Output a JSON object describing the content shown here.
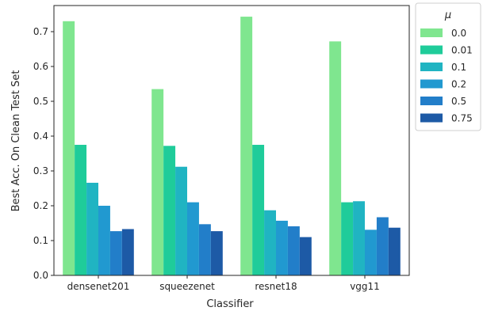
{
  "chart_data": {
    "type": "bar",
    "xlabel": "Classifier",
    "ylabel": "Best Acc. On Clean Test Set",
    "ylim": [
      0,
      0.775
    ],
    "yticks": [
      "0.0",
      "0.1",
      "0.2",
      "0.3",
      "0.4",
      "0.5",
      "0.6",
      "0.7"
    ],
    "categories": [
      "densenet201",
      "squeezenet",
      "resnet18",
      "vgg11"
    ],
    "legend": {
      "title": "μ",
      "placement": "outside-right"
    },
    "series": [
      {
        "name": "0.0",
        "color": "#7fe68f",
        "values": [
          0.73,
          0.535,
          0.743,
          0.672
        ]
      },
      {
        "name": "0.01",
        "color": "#1fcc9a",
        "values": [
          0.375,
          0.372,
          0.375,
          0.21
        ]
      },
      {
        "name": "0.1",
        "color": "#20b4c2",
        "values": [
          0.266,
          0.312,
          0.187,
          0.213
        ]
      },
      {
        "name": "0.2",
        "color": "#2199d0",
        "values": [
          0.2,
          0.21,
          0.157,
          0.131
        ]
      },
      {
        "name": "0.5",
        "color": "#227ec9",
        "values": [
          0.127,
          0.147,
          0.141,
          0.167
        ]
      },
      {
        "name": "0.75",
        "color": "#1d5aa6",
        "values": [
          0.133,
          0.127,
          0.11,
          0.137
        ]
      }
    ]
  }
}
